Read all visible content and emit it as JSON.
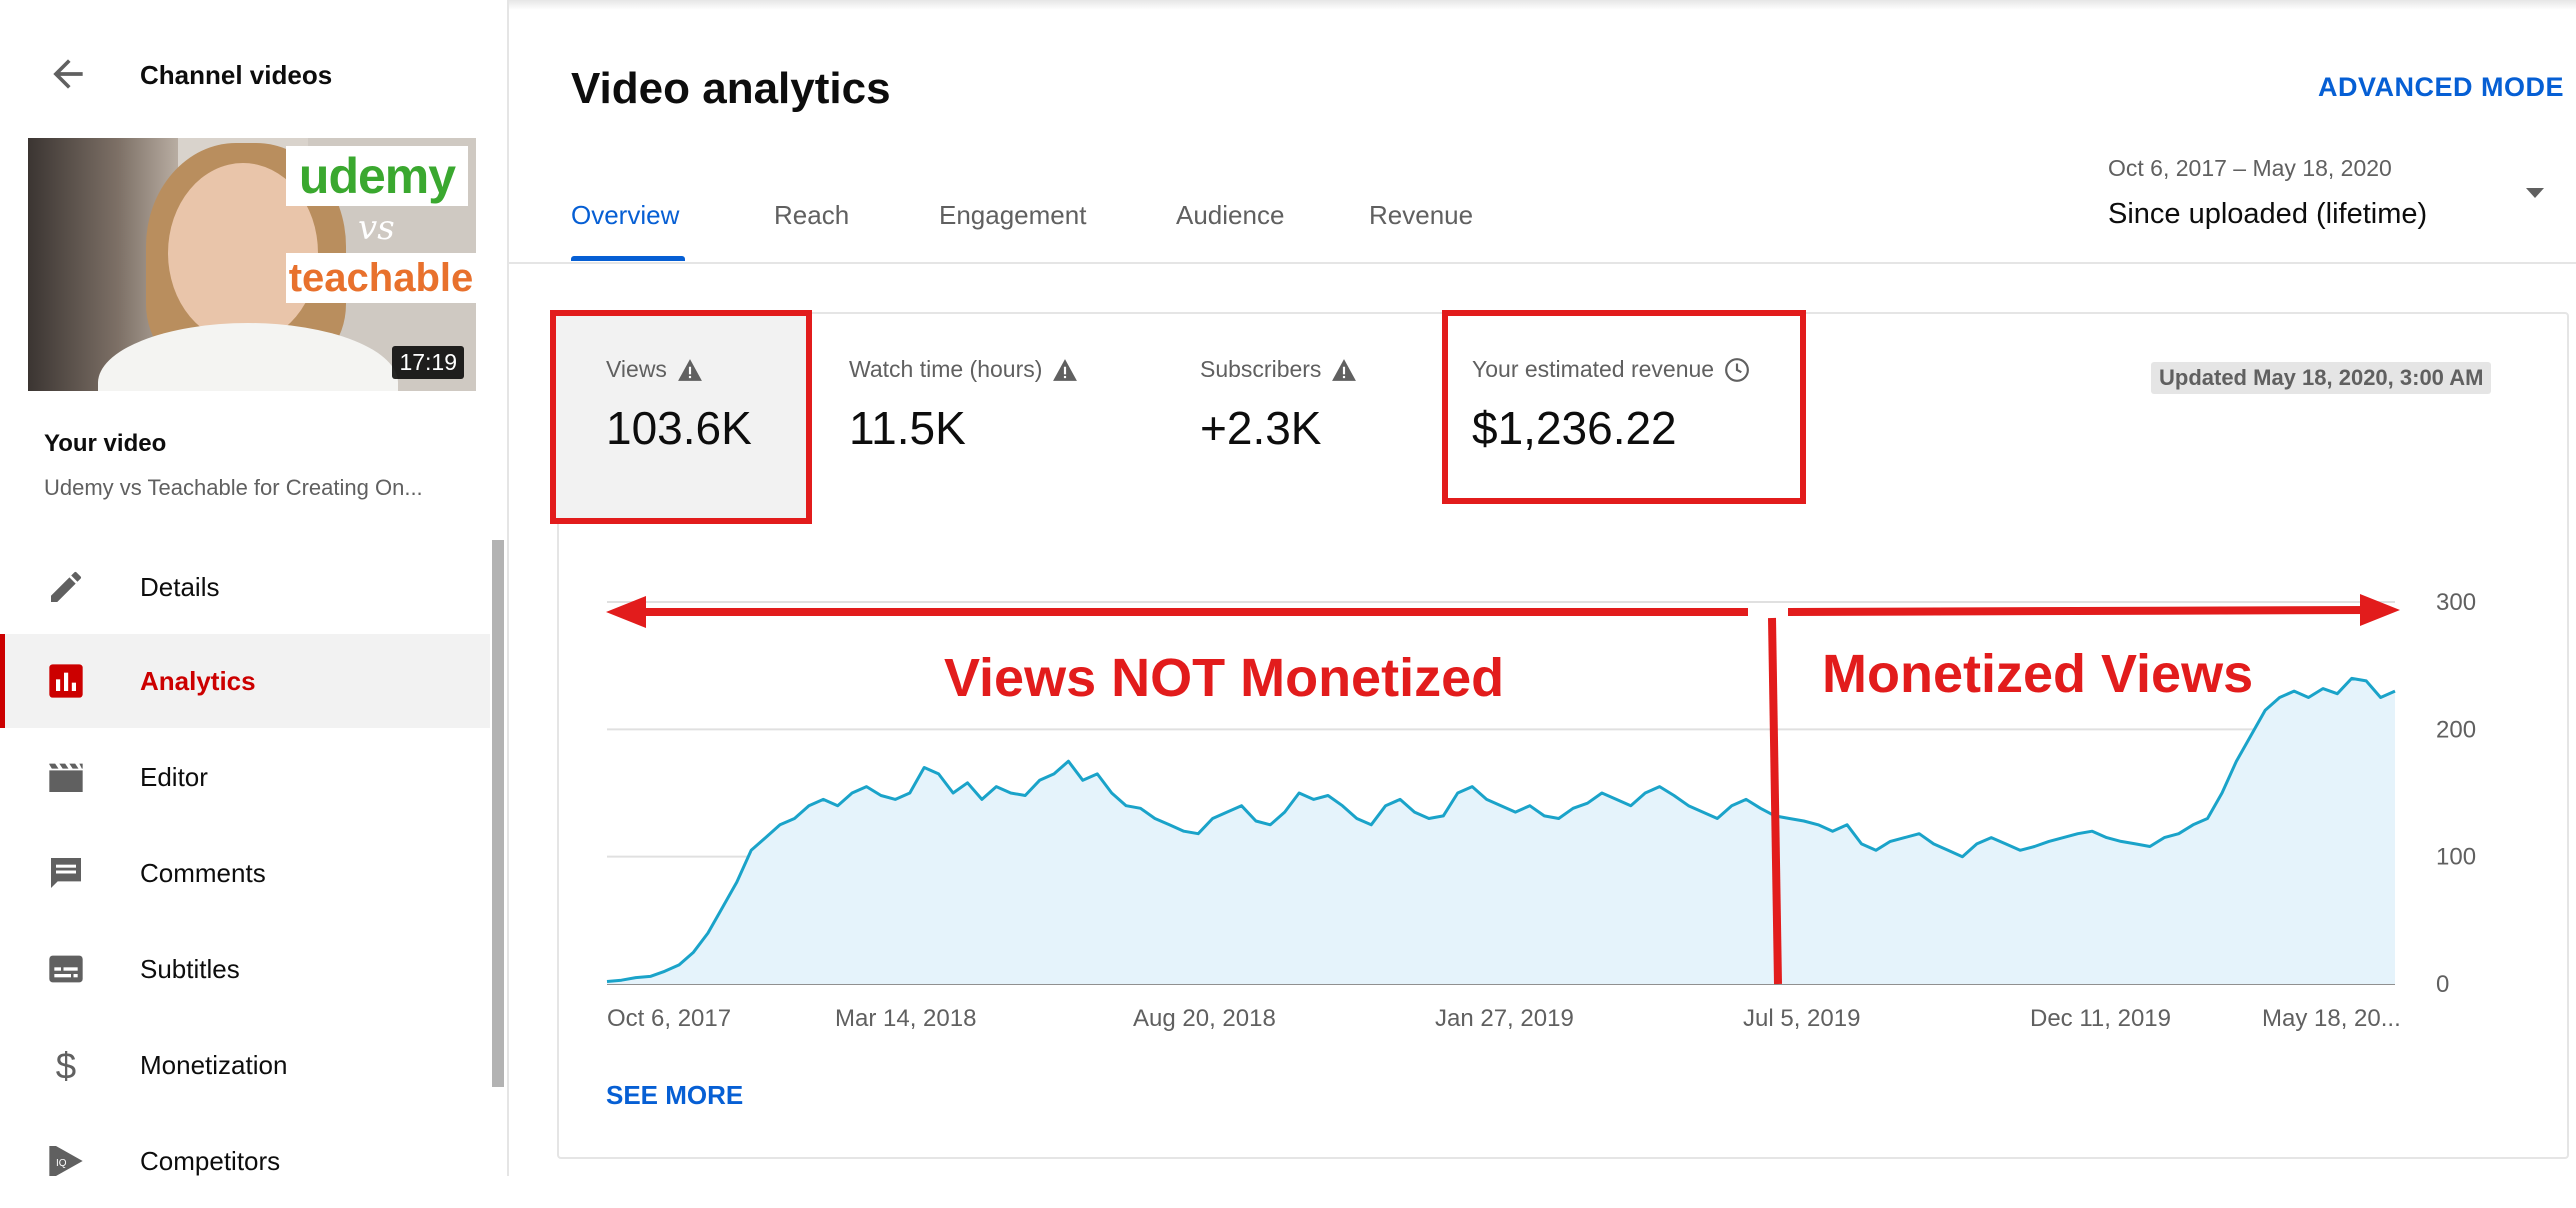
{
  "sidebar": {
    "title": "Channel videos",
    "thumbnail": {
      "duration": "17:19",
      "text_top": "udemy",
      "text_mid": "vs",
      "text_bottom": "teachable"
    },
    "your_video_label": "Your video",
    "video_title": "Udemy vs Teachable for Creating On...",
    "items": [
      {
        "label": "Details",
        "icon": "pencil-icon"
      },
      {
        "label": "Analytics",
        "icon": "analytics-icon",
        "active": true
      },
      {
        "label": "Editor",
        "icon": "clapperboard-icon"
      },
      {
        "label": "Comments",
        "icon": "comment-icon"
      },
      {
        "label": "Subtitles",
        "icon": "subtitles-icon"
      },
      {
        "label": "Monetization",
        "icon": "dollar-icon"
      },
      {
        "label": "Competitors",
        "icon": "competitors-icon"
      }
    ]
  },
  "header": {
    "title": "Video analytics",
    "advanced_mode": "ADVANCED MODE",
    "tabs": [
      "Overview",
      "Reach",
      "Engagement",
      "Audience",
      "Revenue"
    ],
    "date_range": "Oct 6, 2017 – May 18, 2020",
    "date_selection": "Since uploaded (lifetime)"
  },
  "metrics": [
    {
      "label": "Views",
      "value": "103.6K",
      "icon": "warning-icon"
    },
    {
      "label": "Watch time (hours)",
      "value": "11.5K",
      "icon": "warning-icon"
    },
    {
      "label": "Subscribers",
      "value": "+2.3K",
      "icon": "warning-icon"
    },
    {
      "label": "Your estimated revenue",
      "value": "$1,236.22",
      "icon": "clock-icon"
    }
  ],
  "updated": "Updated May 18, 2020, 3:00 AM",
  "see_more": "SEE MORE",
  "annotations": {
    "not_monetized": "Views NOT Monetized",
    "monetized": "Monetized Views",
    "color": "#e21c1c"
  },
  "colors": {
    "accent": "#065fd4",
    "active_nav": "#cc0000",
    "line": "#1aa3c9",
    "fill": "#e5f3fb"
  },
  "chart_data": {
    "type": "area",
    "x_tick_labels": [
      "Oct 6, 2017",
      "Mar 14, 2018",
      "Aug 20, 2018",
      "Jan 27, 2019",
      "Jul 5, 2019",
      "Dec 11, 2019",
      "May 18, 20..."
    ],
    "y_ticks": [
      0,
      100,
      200,
      300
    ],
    "ylim": [
      0,
      300
    ],
    "grid": true,
    "series": [
      {
        "values": [
          2,
          3,
          5,
          6,
          10,
          15,
          25,
          40,
          60,
          80,
          105,
          115,
          125,
          130,
          140,
          145,
          140,
          150,
          155,
          148,
          145,
          150,
          170,
          165,
          150,
          158,
          145,
          155,
          150,
          148,
          160,
          165,
          175,
          160,
          165,
          150,
          140,
          138,
          130,
          125,
          120,
          118,
          130,
          135,
          140,
          128,
          125,
          135,
          150,
          145,
          148,
          140,
          130,
          125,
          140,
          145,
          135,
          130,
          132,
          150,
          155,
          145,
          140,
          135,
          140,
          132,
          130,
          138,
          142,
          150,
          145,
          140,
          150,
          155,
          148,
          140,
          135,
          130,
          140,
          145,
          138,
          132,
          130,
          128,
          125,
          120,
          125,
          110,
          105,
          112,
          115,
          118,
          110,
          105,
          100,
          110,
          115,
          110,
          105,
          108,
          112,
          115,
          118,
          120,
          115,
          112,
          110,
          108,
          115,
          118,
          125,
          130,
          150,
          175,
          195,
          215,
          225,
          230,
          225,
          232,
          228,
          240,
          238,
          225,
          230
        ]
      }
    ]
  }
}
